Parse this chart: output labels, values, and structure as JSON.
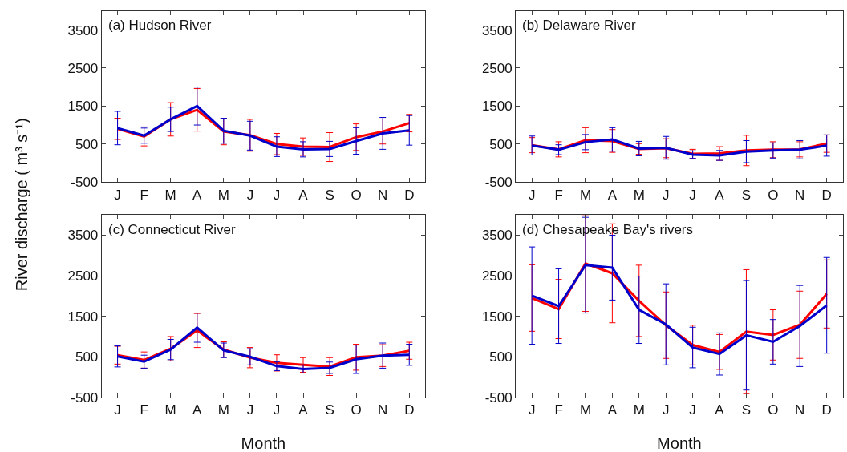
{
  "chart_data": [
    {
      "type": "line",
      "title": "(a) Hudson River",
      "ylabel": "River discharge ( m³ s⁻¹)",
      "categories": [
        "J",
        "F",
        "M",
        "A",
        "M",
        "J",
        "J",
        "A",
        "S",
        "O",
        "N",
        "D"
      ],
      "ylim": [
        -500,
        4000
      ],
      "yticks": [
        -500,
        500,
        1500,
        2500,
        3500
      ],
      "marker": "none",
      "line_style": "solid",
      "series": [
        {
          "color": "#ff0000",
          "values": [
            900,
            700,
            1150,
            1400,
            830,
            730,
            500,
            430,
            420,
            680,
            830,
            1050
          ],
          "errors": [
            280,
            250,
            440,
            560,
            350,
            420,
            280,
            230,
            380,
            350,
            330,
            230
          ]
        },
        {
          "color": "#0000cc",
          "values": [
            920,
            720,
            1150,
            1500,
            850,
            720,
            430,
            360,
            370,
            580,
            780,
            860
          ],
          "errors": [
            440,
            200,
            320,
            500,
            330,
            380,
            260,
            200,
            200,
            350,
            420,
            390
          ]
        }
      ]
    },
    {
      "type": "line",
      "title": "(b) Delaware River",
      "categories": [
        "J",
        "F",
        "M",
        "A",
        "M",
        "J",
        "J",
        "A",
        "S",
        "O",
        "N",
        "D"
      ],
      "ylim": [
        -500,
        4000
      ],
      "yticks": [
        -500,
        500,
        1500,
        2500,
        3500
      ],
      "marker": "none",
      "line_style": "solid",
      "series": [
        {
          "color": "#ff0000",
          "values": [
            470,
            360,
            600,
            580,
            370,
            390,
            240,
            250,
            330,
            350,
            360,
            510
          ],
          "errors": [
            200,
            200,
            330,
            300,
            140,
            250,
            120,
            180,
            400,
            210,
            200,
            230
          ]
        },
        {
          "color": "#0000cc",
          "values": [
            460,
            350,
            550,
            620,
            380,
            400,
            220,
            200,
            300,
            330,
            350,
            460
          ],
          "errors": [
            250,
            130,
            200,
            310,
            190,
            300,
            100,
            130,
            290,
            200,
            240,
            280
          ]
        }
      ]
    },
    {
      "type": "line",
      "title": "(c) Connecticut River",
      "xlabel": "Month",
      "categories": [
        "J",
        "F",
        "M",
        "A",
        "M",
        "J",
        "J",
        "A",
        "S",
        "O",
        "N",
        "D"
      ],
      "ylim": [
        -500,
        4000
      ],
      "yticks": [
        -500,
        500,
        1500,
        2500,
        3500
      ],
      "marker": "none",
      "line_style": "solid",
      "series": [
        {
          "color": "#ff0000",
          "values": [
            540,
            420,
            700,
            1150,
            680,
            480,
            350,
            300,
            260,
            490,
            530,
            650
          ],
          "errors": [
            220,
            200,
            300,
            420,
            190,
            250,
            200,
            180,
            220,
            320,
            270,
            210
          ]
        },
        {
          "color": "#0000cc",
          "values": [
            510,
            380,
            680,
            1220,
            660,
            500,
            270,
            200,
            230,
            440,
            530,
            550
          ],
          "errors": [
            260,
            160,
            250,
            360,
            180,
            200,
            110,
            100,
            140,
            350,
            310,
            260
          ]
        }
      ]
    },
    {
      "type": "line",
      "title": "(d) Chesapeake Bay's rivers",
      "xlabel": "Month",
      "categories": [
        "J",
        "F",
        "M",
        "A",
        "M",
        "J",
        "J",
        "A",
        "S",
        "O",
        "N",
        "D"
      ],
      "ylim": [
        -500,
        4000
      ],
      "yticks": [
        -500,
        500,
        1500,
        2500,
        3500
      ],
      "marker": "none",
      "line_style": "solid",
      "series": [
        {
          "color": "#ff0000",
          "values": [
            1950,
            1680,
            2800,
            2560,
            1880,
            1280,
            790,
            620,
            1120,
            1040,
            1290,
            2050
          ],
          "errors": [
            820,
            730,
            1180,
            1220,
            880,
            820,
            490,
            430,
            1530,
            620,
            830,
            840
          ]
        },
        {
          "color": "#0000cc",
          "values": [
            2010,
            1750,
            2760,
            2700,
            1660,
            1300,
            730,
            570,
            1030,
            870,
            1260,
            1770
          ],
          "errors": [
            1200,
            920,
            1180,
            800,
            830,
            1000,
            500,
            520,
            1350,
            550,
            1000,
            1180
          ]
        }
      ]
    }
  ]
}
